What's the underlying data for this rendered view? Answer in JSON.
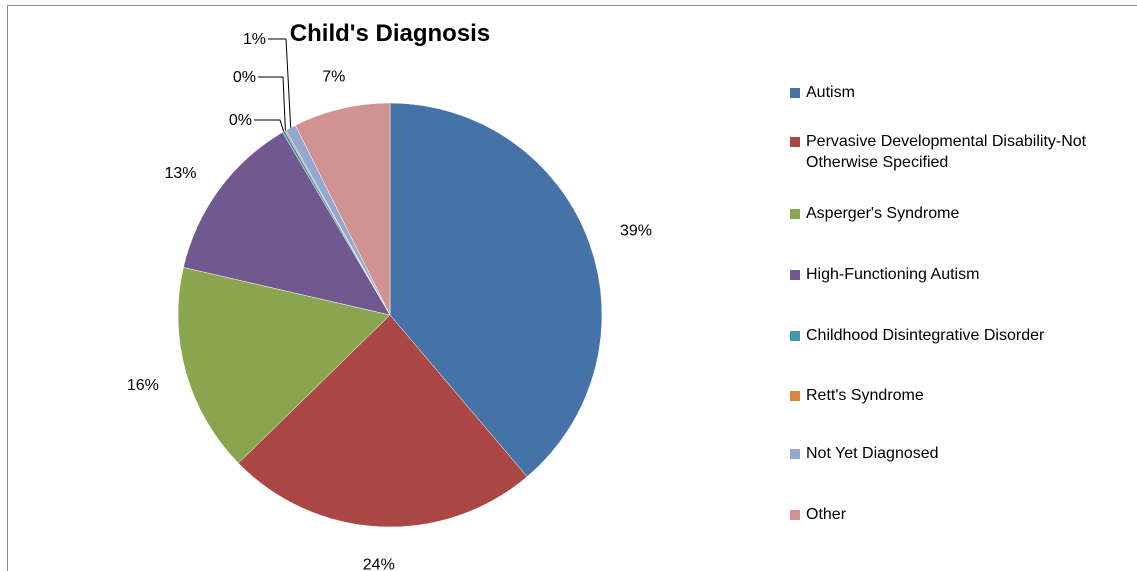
{
  "chart_data": {
    "type": "pie",
    "title": "Child's Diagnosis",
    "legend_position": "right",
    "slices": [
      {
        "label": "Autism",
        "value": 39,
        "value_label": "39%",
        "color": "#4572a7"
      },
      {
        "label": "Pervasive Developmental Disability-Not Otherwise Specified",
        "value": 24,
        "value_label": "24%",
        "color": "#aa4643"
      },
      {
        "label": "Asperger's Syndrome",
        "value": 16,
        "value_label": "16%",
        "color": "#89a54e"
      },
      {
        "label": "High-Functioning Autism",
        "value": 13,
        "value_label": "13%",
        "color": "#71588f"
      },
      {
        "label": "Childhood Disintegrative Disorder",
        "value": 0.2,
        "value_label": "0%",
        "color": "#4198af"
      },
      {
        "label": "Rett's Syndrome",
        "value": 0.1,
        "value_label": "0%",
        "color": "#db843d"
      },
      {
        "label": "Not Yet Diagnosed",
        "value": 0.8,
        "value_label": "1%",
        "color": "#93a9cf"
      },
      {
        "label": "Other",
        "value": 7.4,
        "value_label": "7%",
        "color": "#d19392"
      }
    ]
  },
  "legend": {
    "items": [
      {
        "label": "Autism",
        "color": "#4572a7"
      },
      {
        "label": "Pervasive Developmental Disability-Not\nOtherwise Specified",
        "color": "#aa4643"
      },
      {
        "label": "Asperger's Syndrome",
        "color": "#89a54e"
      },
      {
        "label": "High-Functioning Autism",
        "color": "#71588f"
      },
      {
        "label": "Childhood Disintegrative Disorder",
        "color": "#4198af"
      },
      {
        "label": "Rett's Syndrome",
        "color": "#db843d"
      },
      {
        "label": "Not Yet Diagnosed",
        "color": "#93a9cf"
      },
      {
        "label": "Other",
        "color": "#d19392"
      }
    ]
  }
}
